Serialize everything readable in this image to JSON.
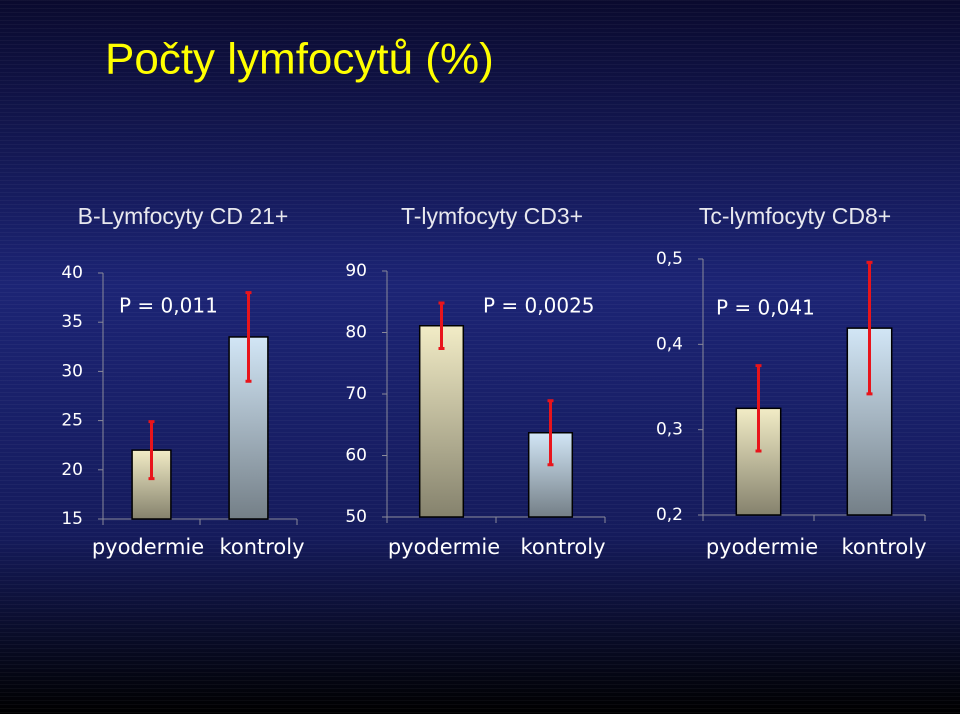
{
  "slide_title": "Počty lymfocytů (%)",
  "chart_data": [
    {
      "type": "bar",
      "title": "B-Lymfocyty CD 21+",
      "annotation": "P = 0,011",
      "categories": [
        "pyodermie",
        "kontroly"
      ],
      "values": [
        22.0,
        33.5
      ],
      "errors": [
        2.9,
        4.5
      ],
      "colors": [
        "#f2ecc6",
        "#d2e6f6"
      ],
      "error_color": "#e8141b",
      "ylim": [
        15,
        40
      ],
      "yticks": [
        15,
        20,
        25,
        30,
        35,
        40
      ]
    },
    {
      "type": "bar",
      "title": "T-lymfocyty CD3+",
      "annotation": "P = 0,0025",
      "categories": [
        "pyodermie",
        "kontroly"
      ],
      "values": [
        81.1,
        63.7
      ],
      "errors": [
        3.7,
        5.2
      ],
      "colors": [
        "#f2ecc6",
        "#d2e6f6"
      ],
      "error_color": "#e8141b",
      "ylim": [
        50,
        90
      ],
      "yticks": [
        50,
        60,
        70,
        80,
        90
      ]
    },
    {
      "type": "bar",
      "title": "Tc-lymfocyty CD8+",
      "annotation": "P = 0,041",
      "categories": [
        "pyodermie",
        "kontroly"
      ],
      "values": [
        0.325,
        0.419
      ],
      "errors": [
        0.05,
        0.077
      ],
      "colors": [
        "#f2ecc6",
        "#d2e6f6"
      ],
      "error_color": "#e8141b",
      "ylim": [
        0.2,
        0.5
      ],
      "yticks": [
        {
          "value": 0.2,
          "label": "0,2"
        },
        {
          "value": 0.3,
          "label": "0,3"
        },
        {
          "value": 0.4,
          "label": "0,4"
        },
        {
          "value": 0.5,
          "label": "0,5"
        }
      ]
    }
  ]
}
